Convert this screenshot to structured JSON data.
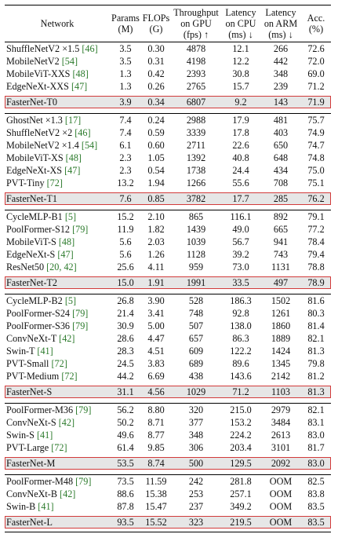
{
  "header": {
    "network": "Network",
    "params_1": "Params",
    "params_2": "(M)",
    "flops_1": "FLOPs",
    "flops_2": "(G)",
    "thr_1": "Throughput",
    "thr_2": "on GPU",
    "thr_3": "(fps) ↑",
    "cpu_1": "Latency",
    "cpu_2": "on CPU",
    "cpu_3": "(ms) ↓",
    "arm_1": "Latency",
    "arm_2": "on ARM",
    "arm_3": "(ms) ↓",
    "acc_1": "Acc.",
    "acc_2": "(%)"
  },
  "groups": [
    {
      "rows": [
        {
          "name": "ShuffleNetV2 ×1.5 ",
          "ref": "[46]",
          "params": "3.5",
          "flops": "0.30",
          "thr": "4878",
          "cpu": "12.1",
          "arm": "266",
          "acc": "72.6"
        },
        {
          "name": "MobileNetV2 ",
          "ref": "[54]",
          "params": "3.5",
          "flops": "0.31",
          "thr": "4198",
          "cpu": "12.2",
          "arm": "442",
          "acc": "72.0"
        },
        {
          "name": "MobileViT-XXS ",
          "ref": "[48]",
          "params": "1.3",
          "flops": "0.42",
          "thr": "2393",
          "cpu": "30.8",
          "arm": "348",
          "acc": "69.0"
        },
        {
          "name": "EdgeNeXt-XXS ",
          "ref": "[47]",
          "params": "1.3",
          "flops": "0.26",
          "thr": "2765",
          "cpu": "15.7",
          "arm": "239",
          "acc": "71.2"
        }
      ],
      "ours": {
        "name": "FasterNet-T0",
        "params": "3.9",
        "flops": "0.34",
        "thr": "6807",
        "cpu": "9.2",
        "arm": "143",
        "acc": "71.9"
      }
    },
    {
      "rows": [
        {
          "name": "GhostNet ×1.3 ",
          "ref": "[17]",
          "params": "7.4",
          "flops": "0.24",
          "thr": "2988",
          "cpu": "17.9",
          "arm": "481",
          "acc": "75.7"
        },
        {
          "name": "ShuffleNetV2 ×2 ",
          "ref": "[46]",
          "params": "7.4",
          "flops": "0.59",
          "thr": "3339",
          "cpu": "17.8",
          "arm": "403",
          "acc": "74.9"
        },
        {
          "name": "MobileNetV2 ×1.4 ",
          "ref": "[54]",
          "params": "6.1",
          "flops": "0.60",
          "thr": "2711",
          "cpu": "22.6",
          "arm": "650",
          "acc": "74.7"
        },
        {
          "name": "MobileViT-XS ",
          "ref": "[48]",
          "params": "2.3",
          "flops": "1.05",
          "thr": "1392",
          "cpu": "40.8",
          "arm": "648",
          "acc": "74.8"
        },
        {
          "name": "EdgeNeXt-XS ",
          "ref": "[47]",
          "params": "2.3",
          "flops": "0.54",
          "thr": "1738",
          "cpu": "24.4",
          "arm": "434",
          "acc": "75.0"
        },
        {
          "name": "PVT-Tiny ",
          "ref": "[72]",
          "params": "13.2",
          "flops": "1.94",
          "thr": "1266",
          "cpu": "55.6",
          "arm": "708",
          "acc": "75.1"
        }
      ],
      "ours": {
        "name": "FasterNet-T1",
        "params": "7.6",
        "flops": "0.85",
        "thr": "3782",
        "cpu": "17.7",
        "arm": "285",
        "acc": "76.2"
      }
    },
    {
      "rows": [
        {
          "name": "CycleMLP-B1 ",
          "ref": "[5]",
          "params": "15.2",
          "flops": "2.10",
          "thr": "865",
          "cpu": "116.1",
          "arm": "892",
          "acc": "79.1"
        },
        {
          "name": "PoolFormer-S12 ",
          "ref": "[79]",
          "params": "11.9",
          "flops": "1.82",
          "thr": "1439",
          "cpu": "49.0",
          "arm": "665",
          "acc": "77.2"
        },
        {
          "name": "MobileViT-S ",
          "ref": "[48]",
          "params": "5.6",
          "flops": "2.03",
          "thr": "1039",
          "cpu": "56.7",
          "arm": "941",
          "acc": "78.4"
        },
        {
          "name": "EdgeNeXt-S ",
          "ref": "[47]",
          "params": "5.6",
          "flops": "1.26",
          "thr": "1128",
          "cpu": "39.2",
          "arm": "743",
          "acc": "79.4"
        },
        {
          "name": "ResNet50 ",
          "ref": "[20, 42]",
          "params": "25.6",
          "flops": "4.11",
          "thr": "959",
          "cpu": "73.0",
          "arm": "1131",
          "acc": "78.8"
        }
      ],
      "ours": {
        "name": "FasterNet-T2",
        "params": "15.0",
        "flops": "1.91",
        "thr": "1991",
        "cpu": "33.5",
        "arm": "497",
        "acc": "78.9"
      }
    },
    {
      "rows": [
        {
          "name": "CycleMLP-B2 ",
          "ref": "[5]",
          "params": "26.8",
          "flops": "3.90",
          "thr": "528",
          "cpu": "186.3",
          "arm": "1502",
          "acc": "81.6"
        },
        {
          "name": "PoolFormer-S24 ",
          "ref": "[79]",
          "params": "21.4",
          "flops": "3.41",
          "thr": "748",
          "cpu": "92.8",
          "arm": "1261",
          "acc": "80.3"
        },
        {
          "name": "PoolFormer-S36 ",
          "ref": "[79]",
          "params": "30.9",
          "flops": "5.00",
          "thr": "507",
          "cpu": "138.0",
          "arm": "1860",
          "acc": "81.4"
        },
        {
          "name": "ConvNeXt-T ",
          "ref": "[42]",
          "params": "28.6",
          "flops": "4.47",
          "thr": "657",
          "cpu": "86.3",
          "arm": "1889",
          "acc": "82.1"
        },
        {
          "name": "Swin-T ",
          "ref": "[41]",
          "params": "28.3",
          "flops": "4.51",
          "thr": "609",
          "cpu": "122.2",
          "arm": "1424",
          "acc": "81.3"
        },
        {
          "name": "PVT-Small ",
          "ref": "[72]",
          "params": "24.5",
          "flops": "3.83",
          "thr": "689",
          "cpu": "89.6",
          "arm": "1345",
          "acc": "79.8"
        },
        {
          "name": "PVT-Medium ",
          "ref": "[72]",
          "params": "44.2",
          "flops": "6.69",
          "thr": "438",
          "cpu": "143.6",
          "arm": "2142",
          "acc": "81.2"
        }
      ],
      "ours": {
        "name": "FasterNet-S",
        "params": "31.1",
        "flops": "4.56",
        "thr": "1029",
        "cpu": "71.2",
        "arm": "1103",
        "acc": "81.3"
      }
    },
    {
      "rows": [
        {
          "name": "PoolFormer-M36 ",
          "ref": "[79]",
          "params": "56.2",
          "flops": "8.80",
          "thr": "320",
          "cpu": "215.0",
          "arm": "2979",
          "acc": "82.1"
        },
        {
          "name": "ConvNeXt-S ",
          "ref": "[42]",
          "params": "50.2",
          "flops": "8.71",
          "thr": "377",
          "cpu": "153.2",
          "arm": "3484",
          "acc": "83.1"
        },
        {
          "name": "Swin-S ",
          "ref": "[41]",
          "params": "49.6",
          "flops": "8.77",
          "thr": "348",
          "cpu": "224.2",
          "arm": "2613",
          "acc": "83.0"
        },
        {
          "name": "PVT-Large ",
          "ref": "[72]",
          "params": "61.4",
          "flops": "9.85",
          "thr": "306",
          "cpu": "203.4",
          "arm": "3101",
          "acc": "81.7"
        }
      ],
      "ours": {
        "name": "FasterNet-M",
        "params": "53.5",
        "flops": "8.74",
        "thr": "500",
        "cpu": "129.5",
        "arm": "2092",
        "acc": "83.0"
      }
    },
    {
      "rows": [
        {
          "name": "PoolFormer-M48 ",
          "ref": "[79]",
          "params": "73.5",
          "flops": "11.59",
          "thr": "242",
          "cpu": "281.8",
          "arm": "OOM",
          "acc": "82.5"
        },
        {
          "name": "ConvNeXt-B ",
          "ref": "[42]",
          "params": "88.6",
          "flops": "15.38",
          "thr": "253",
          "cpu": "257.1",
          "arm": "OOM",
          "acc": "83.8"
        },
        {
          "name": "Swin-B ",
          "ref": "[41]",
          "params": "87.8",
          "flops": "15.47",
          "thr": "237",
          "cpu": "349.2",
          "arm": "OOM",
          "acc": "83.5"
        }
      ],
      "ours": {
        "name": "FasterNet-L",
        "params": "93.5",
        "flops": "15.52",
        "thr": "323",
        "cpu": "219.5",
        "arm": "OOM",
        "acc": "83.5"
      }
    }
  ]
}
